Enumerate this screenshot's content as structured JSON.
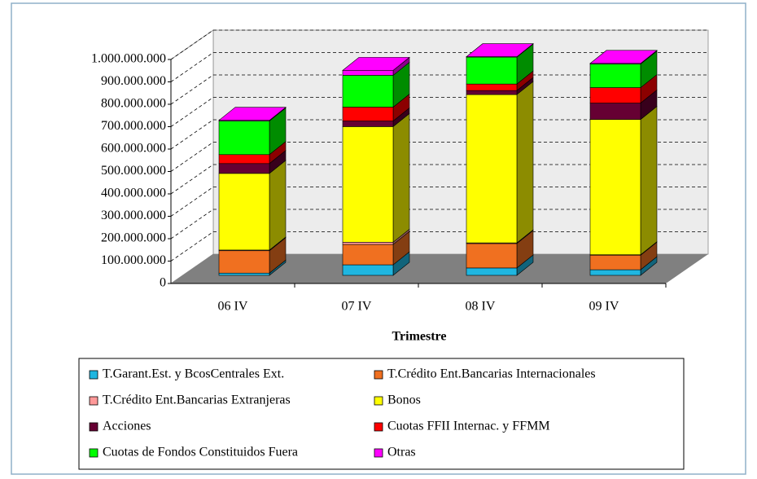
{
  "chart_data": {
    "type": "bar3d_stacked",
    "x_label": "Trimestre",
    "categories": [
      "06 IV",
      "07 IV",
      "08 IV",
      "09 IV"
    ],
    "series": [
      {
        "name": "T.Garant.Est. y BcosCentrales Ext.",
        "color": "#1fb6e0",
        "values": [
          10000000,
          47000000,
          33000000,
          25000000
        ]
      },
      {
        "name": "T.Crédito Ent.Bancarias Internacionales",
        "color": "#f07020",
        "values": [
          100000000,
          91000000,
          109000000,
          65000000
        ]
      },
      {
        "name": "T.Crédito Ent.Bancarias Extranjeras",
        "color": "#ff9999",
        "values": [
          3000000,
          10000000,
          3000000,
          2000000
        ]
      },
      {
        "name": "Bonos",
        "color": "#ffff00",
        "values": [
          342000000,
          516000000,
          662000000,
          604000000
        ]
      },
      {
        "name": "Acciones",
        "color": "#660033",
        "values": [
          44000000,
          25000000,
          18000000,
          73000000
        ]
      },
      {
        "name": "Cuotas FFII Internac. y FFMM",
        "color": "#ff0000",
        "values": [
          40000000,
          62000000,
          29000000,
          69000000
        ]
      },
      {
        "name": "Cuotas de Fondos Constituidos Fuera",
        "color": "#00ff00",
        "values": [
          150000000,
          142000000,
          120000000,
          105000000
        ]
      },
      {
        "name": "Otras",
        "color": "#ff00ff",
        "values": [
          3000000,
          22000000,
          2000000,
          3000000
        ]
      }
    ],
    "ylim": [
      0,
      1000000000
    ],
    "yticks": [
      0,
      {
        "value": 100000000,
        "label": "100.000.000"
      },
      {
        "value": 200000000,
        "label": "200.000.000"
      },
      {
        "value": 300000000,
        "label": "300.000.000"
      },
      {
        "value": 400000000,
        "label": "400.000.000"
      },
      {
        "value": 500000000,
        "label": "500.000.000"
      },
      {
        "value": 600000000,
        "label": "600.000.000"
      },
      {
        "value": 700000000,
        "label": "700.000.000"
      },
      {
        "value": 800000000,
        "label": "800.000.000"
      },
      {
        "value": 900000000,
        "label": "900.000.000"
      },
      {
        "value": 1000000000,
        "label": "1.000.000.000"
      }
    ],
    "grid": true,
    "legend": "bottom"
  }
}
